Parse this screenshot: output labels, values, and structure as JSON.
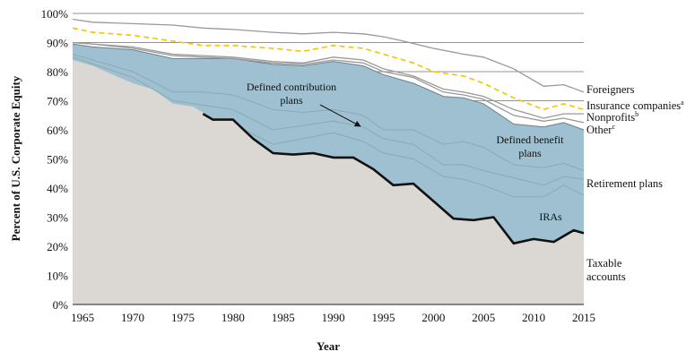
{
  "chart_data": {
    "type": "area",
    "title": "",
    "xlabel": "Year",
    "ylabel": "Percent of U.S. Corporate Equity",
    "xlim": [
      1964,
      2015
    ],
    "ylim": [
      0,
      100
    ],
    "x_ticks": [
      "1965",
      "1970",
      "1975",
      "1980",
      "1985",
      "1990",
      "1995",
      "2000",
      "2005",
      "2010",
      "2015"
    ],
    "y_ticks": [
      "0%",
      "10%",
      "20%",
      "30%",
      "40%",
      "50%",
      "60%",
      "70%",
      "80%",
      "90%",
      "100%"
    ],
    "grid": "horizontal",
    "colors": {
      "taxable": "#dbd7d3",
      "retirement": "#9ec0d0",
      "boundary": "#999999",
      "ira_boundary": "#111111",
      "insurance": "#f2c500"
    },
    "series": [
      {
        "name": "Taxable accounts",
        "x": [
          1964,
          1966,
          1968,
          1970,
          1972,
          1974,
          1976,
          1978,
          1980,
          1982,
          1984,
          1986,
          1988,
          1990,
          1992,
          1994,
          1996,
          1998,
          2000,
          2002,
          2004,
          2006,
          2008,
          2010,
          2012,
          2014,
          2015
        ],
        "values": [
          84,
          82,
          79,
          76,
          74,
          69,
          68,
          64,
          63.5,
          57,
          52,
          51.5,
          52,
          50.5,
          50.5,
          46.5,
          41,
          41.5,
          35.5,
          29.5,
          29,
          30,
          21,
          22.5,
          21.5,
          25.5,
          24.5
        ]
      },
      {
        "name": "IRAs",
        "x": [
          1977,
          1978,
          1980,
          1982,
          1984,
          1986,
          1988,
          1990,
          1992,
          1994,
          1996,
          1998,
          2000,
          2002,
          2004,
          2006,
          2008,
          2010,
          2012,
          2014,
          2015
        ],
        "values": [
          65.5,
          63.5,
          63.5,
          57,
          52,
          51.5,
          52,
          50.5,
          50.5,
          46.5,
          41,
          41.5,
          35.5,
          29.5,
          29,
          30,
          21,
          22.5,
          21.5,
          25.5,
          24.5
        ]
      },
      {
        "name": "Retirement plans",
        "x": [
          1964,
          1966,
          1970,
          1974,
          1977,
          1980,
          1984,
          1987,
          1990,
          1993,
          1995,
          1998,
          2001,
          2003,
          2005,
          2008,
          2011,
          2013,
          2015
        ],
        "values": [
          89.5,
          88.5,
          87.5,
          84.5,
          84.5,
          84.5,
          82.5,
          82,
          83.5,
          82,
          79,
          76,
          71.5,
          71,
          69,
          62,
          61,
          62.5,
          60
        ]
      },
      {
        "name": "Other",
        "x": [
          1964,
          1966,
          1970,
          1974,
          1977,
          1980,
          1984,
          1987,
          1990,
          1993,
          1995,
          1998,
          2001,
          2003,
          2005,
          2008,
          2011,
          2013,
          2015
        ],
        "values": [
          90,
          89.5,
          88,
          85.5,
          85,
          84.5,
          83,
          82.5,
          84,
          83,
          80,
          78,
          73,
          72,
          70.5,
          65,
          63,
          64,
          62.5
        ]
      },
      {
        "name": "Nonprofits",
        "x": [
          1964,
          1966,
          1970,
          1974,
          1977,
          1980,
          1984,
          1987,
          1990,
          1993,
          1995,
          1998,
          2001,
          2003,
          2005,
          2008,
          2011,
          2013,
          2015
        ],
        "values": [
          90,
          89.5,
          88.5,
          86,
          85.5,
          85,
          83.5,
          83,
          85,
          84,
          81,
          78.5,
          74,
          73,
          71.5,
          67,
          64,
          65.5,
          65.5
        ]
      },
      {
        "name": "Insurance companies",
        "x": [
          1964,
          1966,
          1970,
          1974,
          1977,
          1980,
          1984,
          1987,
          1990,
          1993,
          1995,
          1998,
          2000,
          2003,
          2005,
          2008,
          2011,
          2013,
          2015
        ],
        "values": [
          95,
          93.5,
          92.5,
          90.5,
          89,
          89,
          88,
          87,
          89,
          88,
          86,
          83,
          80,
          78.5,
          76,
          71,
          67,
          69,
          67
        ]
      },
      {
        "name": "Foreigners",
        "x": [
          1964,
          1966,
          1970,
          1974,
          1977,
          1980,
          1984,
          1987,
          1990,
          1993,
          1995,
          1997,
          2000,
          2003,
          2005,
          2008,
          2011,
          2013,
          2015
        ],
        "values": [
          98,
          97,
          96.5,
          96,
          95,
          94.5,
          93.5,
          93,
          93.5,
          93,
          92,
          90.5,
          88,
          86,
          85,
          81,
          75,
          75.5,
          73
        ]
      }
    ],
    "internal_lines": [
      {
        "x": [
          1964,
          1970,
          1974,
          1977,
          1980,
          1984,
          1987,
          1990,
          1993,
          1995,
          1998,
          2001,
          2003,
          2005,
          2008,
          2011,
          2013,
          2015
        ],
        "values": [
          86,
          80,
          73,
          73,
          72,
          67,
          66,
          67,
          65,
          60,
          60,
          55,
          56,
          54,
          48,
          47,
          48.5,
          46
        ]
      },
      {
        "x": [
          1964,
          1970,
          1974,
          1977,
          1980,
          1984,
          1987,
          1990,
          1993,
          1995,
          1998,
          2001,
          2003,
          2005,
          2008,
          2011,
          2013,
          2015
        ],
        "values": [
          85,
          78,
          70,
          68.5,
          67,
          60,
          61.5,
          63,
          61,
          57,
          55,
          48,
          48,
          46,
          43.5,
          41,
          44,
          43
        ]
      },
      {
        "x": [
          1981,
          1984,
          1987,
          1990,
          1993,
          1995,
          1998,
          2001,
          2003,
          2005,
          2008,
          2011,
          2013,
          2015
        ],
        "values": [
          60,
          55,
          57,
          59,
          56,
          52,
          50,
          44,
          43,
          41,
          37,
          37,
          41,
          37.5
        ]
      }
    ],
    "annotations": {
      "defined_contribution": [
        "Defined contribution",
        "plans"
      ],
      "defined_benefit": [
        "Defined benefit",
        "plans"
      ],
      "iras": "IRAs",
      "foreigners": "Foreigners",
      "insurance": "Insurance companies",
      "insurance_sup": "a",
      "nonprofits": "Nonprofits",
      "nonprofits_sup": "b",
      "other": "Other",
      "other_sup": "c",
      "retirement_plans": "Retirement plans",
      "taxable": [
        "Taxable",
        "accounts"
      ]
    }
  }
}
